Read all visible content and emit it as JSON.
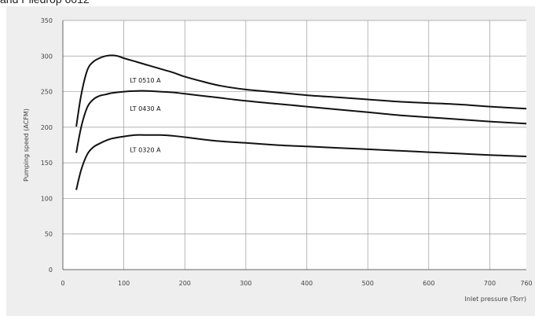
{
  "heading": "and Piledrop 6012",
  "chart_data": {
    "type": "line",
    "title": "",
    "xlabel": "Inlet pressure (Torr)",
    "ylabel": "Pumping speed (ACFM)",
    "xlim": [
      0,
      760
    ],
    "ylim": [
      0,
      350
    ],
    "xticks": [
      0,
      100,
      200,
      300,
      400,
      500,
      600,
      700,
      760
    ],
    "yticks": [
      0,
      50,
      100,
      150,
      200,
      250,
      300,
      350
    ],
    "grid": true,
    "series": [
      {
        "name": "LT 0510 A",
        "x": [
          22,
          30,
          40,
          50,
          60,
          70,
          80,
          90,
          100,
          120,
          140,
          160,
          180,
          200,
          230,
          260,
          300,
          350,
          400,
          450,
          500,
          550,
          600,
          650,
          700,
          760
        ],
        "y": [
          201,
          245,
          280,
          292,
          297,
          300,
          301,
          300,
          297,
          292,
          287,
          282,
          277,
          271,
          264,
          258,
          253,
          249,
          245,
          242,
          239,
          236,
          234,
          232,
          229,
          226
        ]
      },
      {
        "name": "LT 0430 A",
        "x": [
          22,
          30,
          40,
          50,
          60,
          70,
          80,
          100,
          120,
          140,
          160,
          180,
          200,
          250,
          300,
          350,
          400,
          450,
          500,
          550,
          600,
          650,
          700,
          760
        ],
        "y": [
          164,
          200,
          228,
          239,
          244,
          246,
          248,
          250,
          251,
          251,
          250,
          249,
          247,
          242,
          237,
          233,
          229,
          225,
          221,
          217,
          214,
          211,
          208,
          205
        ]
      },
      {
        "name": "LT 0320 A",
        "x": [
          22,
          30,
          40,
          50,
          60,
          70,
          80,
          100,
          120,
          140,
          160,
          180,
          200,
          250,
          300,
          350,
          400,
          450,
          500,
          550,
          600,
          650,
          700,
          760
        ],
        "y": [
          112,
          140,
          162,
          172,
          177,
          181,
          184,
          187,
          189,
          189,
          189,
          188,
          186,
          181,
          178,
          175,
          173,
          171,
          169,
          167,
          165,
          163,
          161,
          159
        ]
      }
    ],
    "annotations": [
      {
        "text": "LT 0510 A",
        "x": 110,
        "y": 263
      },
      {
        "text": "LT 0430 A",
        "x": 110,
        "y": 223
      },
      {
        "text": "LT 0320 A",
        "x": 110,
        "y": 165
      }
    ]
  }
}
